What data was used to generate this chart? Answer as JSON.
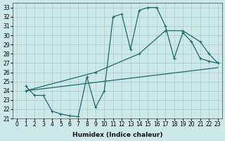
{
  "xlabel": "Humidex (Indice chaleur)",
  "bg_color": "#cce8e8",
  "grid_color": "#aacccc",
  "line_color": "#1a6b6b",
  "xlim": [
    -0.5,
    23.5
  ],
  "ylim": [
    21,
    33.5
  ],
  "xticks": [
    0,
    1,
    2,
    3,
    4,
    5,
    6,
    7,
    8,
    9,
    10,
    11,
    12,
    13,
    14,
    15,
    16,
    17,
    18,
    19,
    20,
    21,
    22,
    23
  ],
  "yticks": [
    21,
    22,
    23,
    24,
    25,
    26,
    27,
    28,
    29,
    30,
    31,
    32,
    33
  ],
  "curve_x": [
    1,
    2,
    3,
    4,
    5,
    6,
    7,
    8,
    9,
    10,
    11,
    12,
    13,
    14,
    15,
    16,
    17,
    18,
    19,
    20,
    21,
    22,
    23
  ],
  "curve_y": [
    24.5,
    23.5,
    23.5,
    21.8,
    21.5,
    21.3,
    21.2,
    25.5,
    22.2,
    24.0,
    32.0,
    32.3,
    28.5,
    32.7,
    33.0,
    33.0,
    31.0,
    27.5,
    30.3,
    29.3,
    27.5,
    27.2,
    27.0
  ],
  "line1_x": [
    1,
    9,
    14,
    17,
    19,
    21,
    22,
    23
  ],
  "line1_y": [
    24.0,
    26.0,
    28.0,
    30.5,
    30.5,
    29.3,
    28.0,
    27.0
  ],
  "line2_x": [
    1,
    23
  ],
  "line2_y": [
    24.0,
    26.5
  ]
}
